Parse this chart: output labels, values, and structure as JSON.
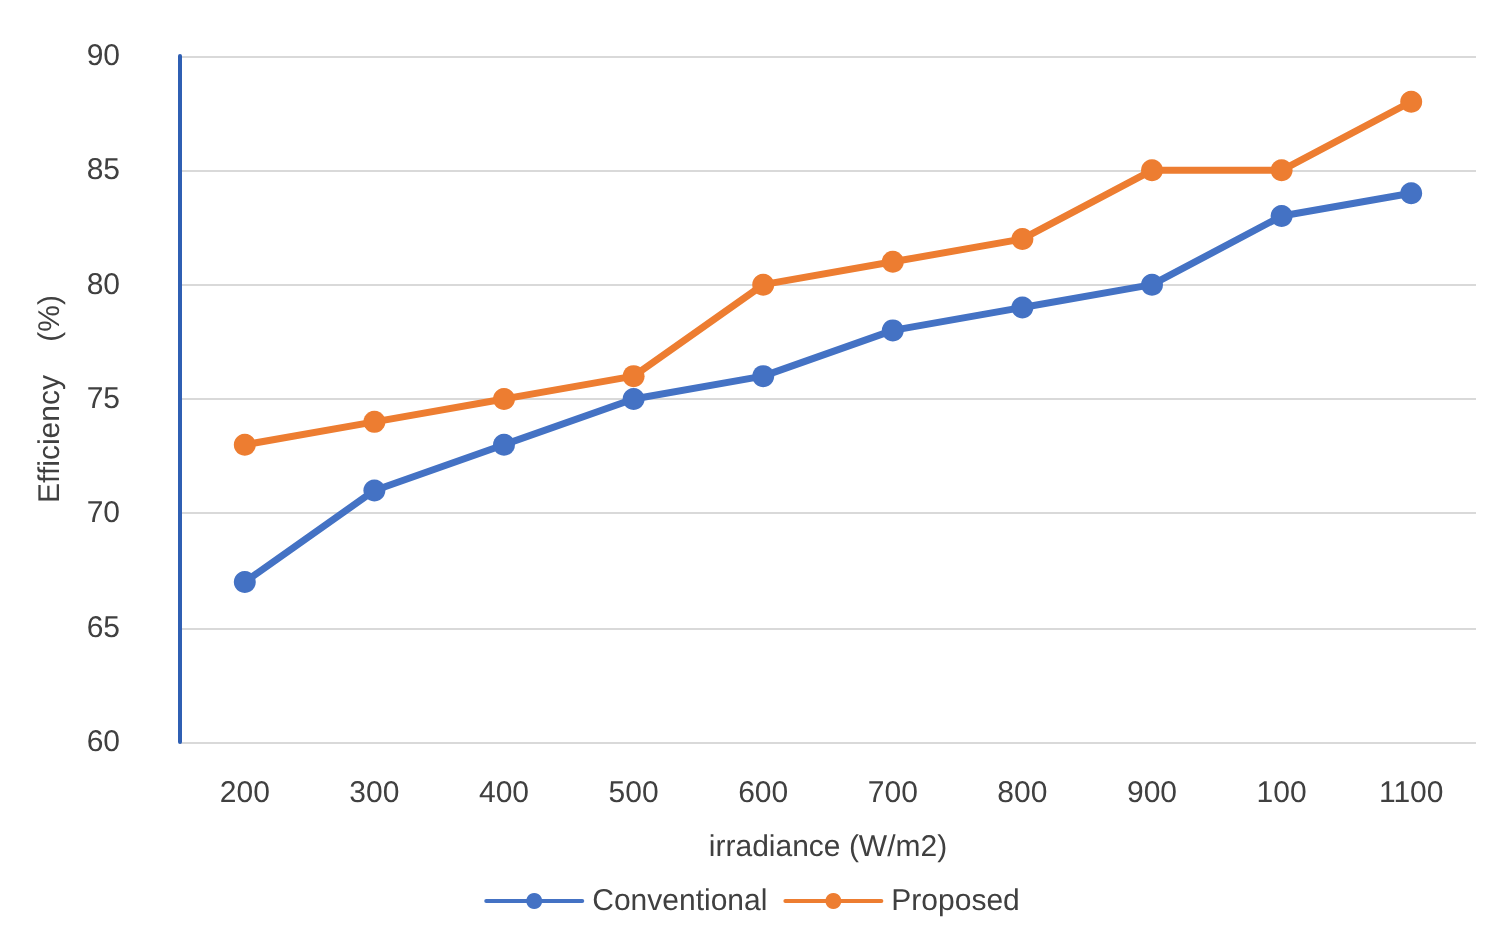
{
  "chart_data": {
    "type": "line",
    "xlabel": "irradiance (W/m2)",
    "ylabel": "Efficiency    (%)",
    "categories": [
      "200",
      "300",
      "400",
      "500",
      "600",
      "700",
      "800",
      "900",
      "100",
      "1100"
    ],
    "series": [
      {
        "name": "Conventional",
        "color": "#4472c4",
        "values": [
          67,
          71,
          73,
          75,
          76,
          78,
          79,
          80,
          83,
          84
        ]
      },
      {
        "name": "Proposed",
        "color": "#ed7d31",
        "values": [
          73,
          74,
          75,
          76,
          80,
          81,
          82,
          85,
          85,
          88
        ]
      }
    ],
    "ylim": [
      60,
      90
    ],
    "yticks": [
      60,
      65,
      70,
      75,
      80,
      85,
      90
    ],
    "grid": "y",
    "legend": "bottom",
    "marker": "circle",
    "line_style": "solid"
  }
}
